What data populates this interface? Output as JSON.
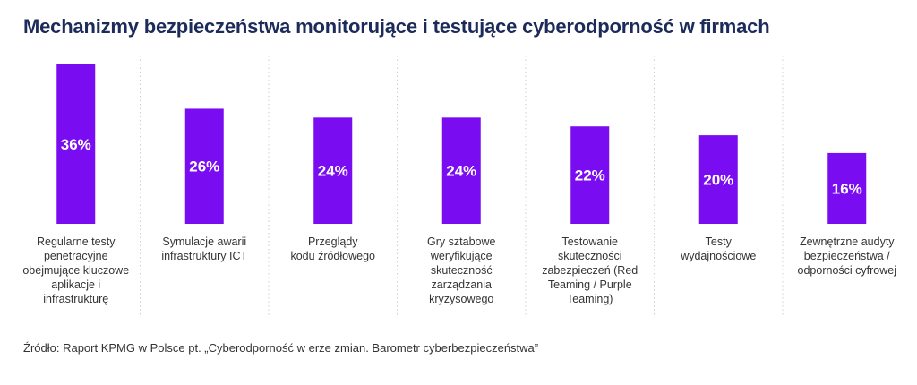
{
  "title": "Mechanizmy bezpieczeństwa monitorujące i testujące cyberodporność w firmach",
  "source": "Źródło: Raport KPMG w Polsce pt. „Cyberodporność w erze zmian. Barometr cyberbezpieczeństwa”",
  "colors": {
    "bar": "#7a0cf1",
    "title": "#1c2b5a",
    "divider": "#cfcfcf",
    "text": "#333333",
    "value_text": "#ffffff"
  },
  "chart_data": {
    "type": "bar",
    "title": "Mechanizmy bezpieczeństwa monitorujące i testujące cyberodporność w firmach",
    "xlabel": "",
    "ylabel": "",
    "ylim": [
      0,
      36
    ],
    "unit": "%",
    "categories": [
      [
        "Regularne testy",
        "penetracyjne",
        "obejmujące kluczowe",
        "aplikacje i",
        "infrastrukturę"
      ],
      [
        "Symulacje awarii",
        "infrastruktury ICT"
      ],
      [
        "Przeglądy",
        "kodu źródłowego"
      ],
      [
        "Gry sztabowe",
        "weryfikujące",
        "skuteczność",
        "zarządzania",
        "kryzysowego"
      ],
      [
        "Testowanie",
        "skuteczności",
        "zabezpieczeń (Red",
        "Teaming / Purple",
        "Teaming)"
      ],
      [
        "Testy",
        "wydajnościowe"
      ],
      [
        "Zewnętrzne audyty",
        "bezpieczeństwa /",
        "odporności cyfrowej"
      ]
    ],
    "values": [
      36,
      26,
      24,
      24,
      22,
      20,
      16
    ],
    "value_labels": [
      "36%",
      "26%",
      "24%",
      "24%",
      "22%",
      "20%",
      "16%"
    ]
  }
}
